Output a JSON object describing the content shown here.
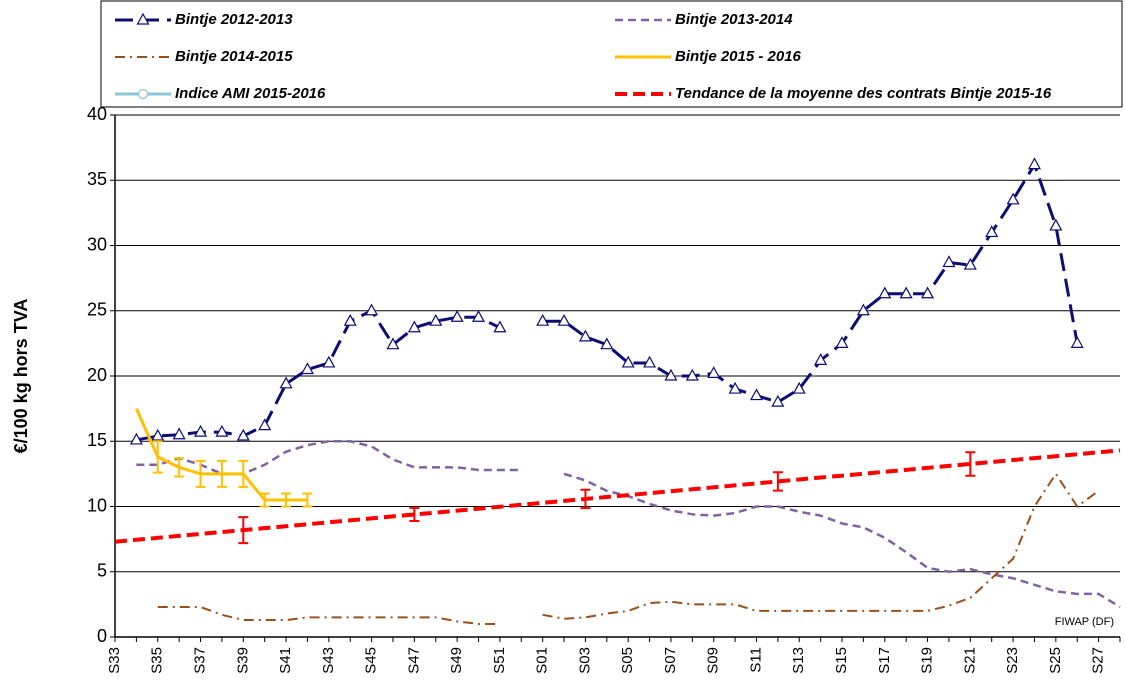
{
  "chart_data": {
    "type": "line",
    "y_label": "€/100 kg hors TVA",
    "annotation": "FIWAP (DF)",
    "ylim": [
      0,
      40
    ],
    "yticks": [
      0,
      5,
      10,
      15,
      20,
      25,
      30,
      35,
      40
    ],
    "grid": true,
    "categories": [
      "S33",
      null,
      "S35",
      null,
      "S37",
      null,
      "S39",
      null,
      "S41",
      null,
      "S43",
      null,
      "S45",
      null,
      "S47",
      null,
      "S49",
      null,
      "S51",
      null,
      "S01",
      null,
      "S03",
      null,
      "S05",
      null,
      "S07",
      null,
      "S09",
      null,
      "S11",
      null,
      "S13",
      null,
      "S15",
      null,
      "S17",
      null,
      "S19",
      null,
      "S21",
      null,
      "S23",
      null,
      "S25",
      null,
      "S27",
      null
    ],
    "series": [
      {
        "name": "Bintje 2012-2013",
        "color": "#0d0d73",
        "dash": "18,8",
        "width": 3,
        "marker": "triangle",
        "values": [
          null,
          15.1,
          15.4,
          15.5,
          15.7,
          15.7,
          15.4,
          16.2,
          19.4,
          20.5,
          21.0,
          24.2,
          25.0,
          22.4,
          23.7,
          24.2,
          24.5,
          24.5,
          23.7,
          null,
          24.2,
          24.2,
          23.0,
          22.4,
          21.0,
          21.0,
          20.0,
          20.0,
          20.2,
          19.0,
          18.5,
          18.0,
          19.0,
          21.2,
          22.5,
          25.0,
          26.3,
          26.3,
          26.3,
          28.7,
          28.5,
          31.0,
          33.5,
          36.2,
          31.5,
          22.5,
          null,
          null
        ]
      },
      {
        "name": "Bintje 2013-2014",
        "color": "#8064a2",
        "dash": "8,5",
        "width": 2.5,
        "values": [
          null,
          13.2,
          13.2,
          13.7,
          13.2,
          12.5,
          12.5,
          13.2,
          14.2,
          14.7,
          15.0,
          15.0,
          14.6,
          13.6,
          13.0,
          13.0,
          13.0,
          12.8,
          12.8,
          12.8,
          null,
          12.5,
          12.0,
          11.2,
          10.8,
          10.2,
          9.7,
          9.4,
          9.3,
          9.5,
          10.0,
          10.0,
          9.6,
          9.3,
          8.7,
          8.4,
          7.6,
          6.5,
          5.3,
          5.0,
          5.2,
          4.8,
          4.5,
          4.0,
          3.5,
          3.3,
          3.3,
          2.3
        ]
      },
      {
        "name": "Bintje 2014-2015",
        "color": "#99501a",
        "dash": "10,5,2,5",
        "width": 2,
        "values": [
          null,
          null,
          2.3,
          2.3,
          2.3,
          1.7,
          1.3,
          1.3,
          1.3,
          1.5,
          1.5,
          1.5,
          1.5,
          1.5,
          1.5,
          1.5,
          1.2,
          1.0,
          1.0,
          null,
          1.7,
          1.4,
          1.5,
          1.8,
          2.0,
          2.6,
          2.7,
          2.5,
          2.5,
          2.5,
          2.0,
          2.0,
          2.0,
          2.0,
          2.0,
          2.0,
          2.0,
          2.0,
          2.0,
          2.4,
          3.0,
          4.5,
          6.0,
          10.0,
          12.5,
          10.0,
          11.2,
          null
        ]
      },
      {
        "name": "Bintje 2015 - 2016",
        "color": "#ffc000",
        "dash": "",
        "width": 3,
        "values": [
          null,
          17.5,
          13.8,
          13.0,
          12.5,
          12.5,
          12.5,
          10.5,
          10.5,
          10.5,
          null,
          null,
          null,
          null,
          null,
          null,
          null,
          null,
          null,
          null,
          null,
          null,
          null,
          null,
          null,
          null,
          null,
          null,
          null,
          null,
          null,
          null,
          null,
          null,
          null,
          null,
          null,
          null,
          null,
          null,
          null,
          null,
          null,
          null,
          null,
          null,
          null,
          null
        ],
        "errors": [
          null,
          null,
          1.2,
          0.7,
          1.0,
          1.0,
          1.0,
          0.5,
          0.5,
          0.5,
          null,
          null,
          null,
          null,
          null,
          null,
          null,
          null,
          null,
          null,
          null,
          null,
          null,
          null,
          null,
          null,
          null,
          null,
          null,
          null,
          null,
          null,
          null,
          null,
          null,
          null,
          null,
          null,
          null,
          null,
          null,
          null,
          null,
          null,
          null,
          null,
          null,
          null
        ]
      },
      {
        "name": "Indice AMI 2015-2016",
        "color": "#8cc6d8",
        "dash": "",
        "width": 3,
        "marker": "circle",
        "values": [
          null,
          null,
          null,
          null,
          null,
          null,
          null,
          null,
          null,
          null,
          null,
          null,
          null,
          null,
          null,
          null,
          null,
          null,
          null,
          null,
          null,
          null,
          null,
          null,
          null,
          null,
          null,
          null,
          null,
          null,
          null,
          null,
          null,
          null,
          null,
          null,
          null,
          null,
          null,
          null,
          null,
          null,
          null,
          null,
          null,
          null,
          null,
          null
        ]
      },
      {
        "name": "Tendance de la moyenne des contrats Bintje 2015-16",
        "color": "#ff0000",
        "dash": "12,6",
        "width": 4,
        "values": [
          7.3,
          7.45,
          7.6,
          7.75,
          7.9,
          8.04,
          8.19,
          8.34,
          8.49,
          8.64,
          8.79,
          8.94,
          9.09,
          9.24,
          9.39,
          9.53,
          9.68,
          9.83,
          9.98,
          10.13,
          10.28,
          10.43,
          10.58,
          10.73,
          10.87,
          11.02,
          11.17,
          11.32,
          11.47,
          11.62,
          11.77,
          11.92,
          12.07,
          12.22,
          12.36,
          12.51,
          12.66,
          12.81,
          12.96,
          13.11,
          13.26,
          13.41,
          13.56,
          13.71,
          13.85,
          14.0,
          14.15,
          14.3
        ],
        "errors": [
          null,
          null,
          null,
          null,
          null,
          null,
          1.0,
          null,
          null,
          null,
          null,
          null,
          null,
          null,
          0.5,
          null,
          null,
          null,
          null,
          null,
          null,
          null,
          0.7,
          null,
          null,
          null,
          null,
          null,
          null,
          null,
          null,
          0.7,
          null,
          null,
          null,
          null,
          null,
          null,
          null,
          null,
          0.9,
          null,
          null,
          null,
          null,
          null,
          null,
          null
        ]
      }
    ]
  }
}
